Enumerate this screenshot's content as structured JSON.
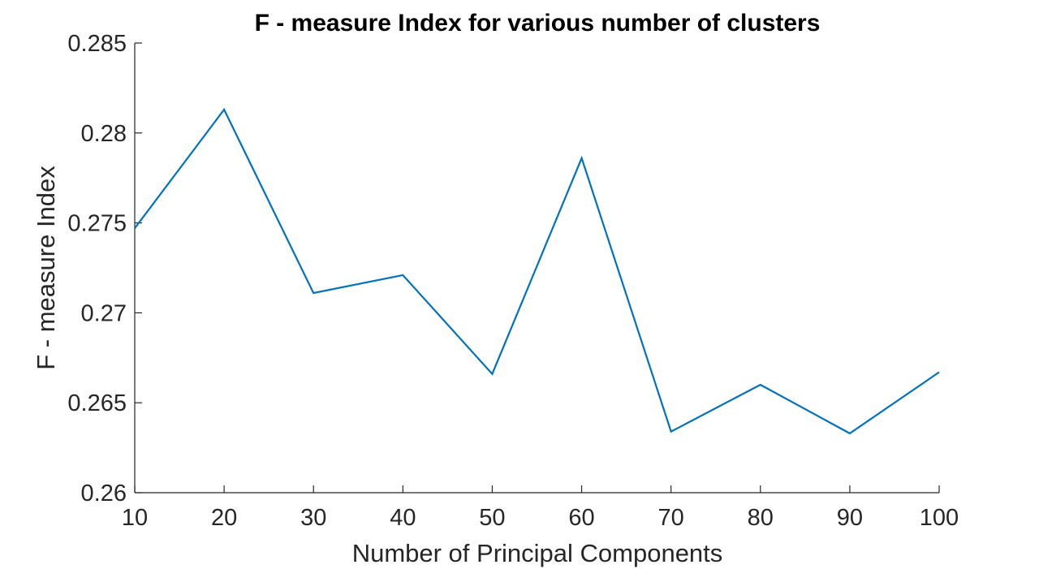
{
  "chart_data": {
    "type": "line",
    "title": "F - measure Index for various number of clusters",
    "xlabel": "Number of Principal Components",
    "ylabel": "F - measure Index",
    "x": [
      10,
      20,
      30,
      40,
      50,
      60,
      70,
      80,
      90,
      100
    ],
    "series": [
      {
        "values": [
          0.2747,
          0.2813,
          0.2711,
          0.2721,
          0.2666,
          0.2786,
          0.2634,
          0.266,
          0.2633,
          0.2667
        ],
        "color": "#0072BD"
      }
    ],
    "xlim": [
      10,
      100
    ],
    "ylim": [
      0.26,
      0.285
    ],
    "xticks": [
      "10",
      "20",
      "30",
      "40",
      "50",
      "60",
      "70",
      "80",
      "90",
      "100"
    ],
    "yticks": [
      "0.26",
      "0.265",
      "0.27",
      "0.275",
      "0.28",
      "0.285"
    ],
    "grid": false
  }
}
